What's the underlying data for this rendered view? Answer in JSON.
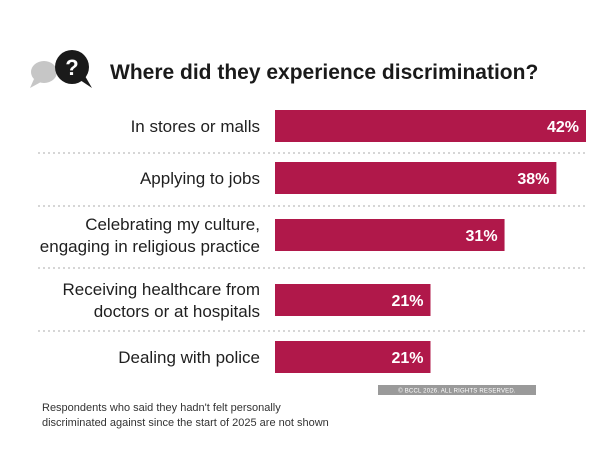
{
  "colors": {
    "bar": "#b0184a",
    "icon_dark": "#1a1a1a",
    "icon_light": "#c6c6c6",
    "divider": "#bdbdbd",
    "copyright_bg": "#9a9a9a"
  },
  "icon": {
    "name": "question-bubble-icon",
    "glyph": "?"
  },
  "chart_data": {
    "type": "bar",
    "orientation": "horizontal",
    "title": "Where did they experience discrimination?",
    "xlim": [
      0,
      42
    ],
    "grid": false,
    "categories": [
      [
        "In stores or malls"
      ],
      [
        "Applying to jobs"
      ],
      [
        "Celebrating my culture,",
        "engaging in religious practice"
      ],
      [
        "Receiving healthcare from",
        "doctors or at hospitals"
      ],
      [
        "Dealing with police"
      ]
    ],
    "values": [
      42,
      38,
      31,
      21,
      21
    ],
    "value_labels": [
      "42%",
      "38%",
      "31%",
      "21%",
      "21%"
    ],
    "footnote": [
      "Respondents who said they hadn't felt personally",
      "discriminated against since the start of 2025 are not shown"
    ],
    "copyright": "© BCCL 2026. ALL RIGHTS RESERVED."
  }
}
